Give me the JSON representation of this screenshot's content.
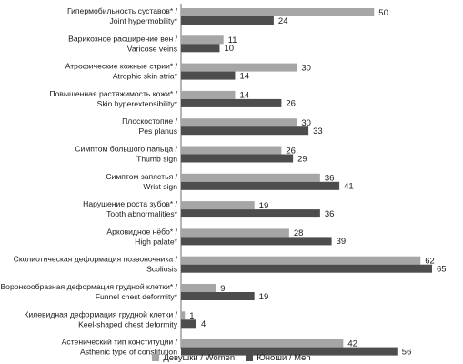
{
  "chart_data": {
    "type": "bar",
    "orientation": "horizontal",
    "categories": [
      {
        "ru": "Гипермобильность суставов* /",
        "en": "Joint hypermobility*"
      },
      {
        "ru": "Варикозное расширение вен /",
        "en": "Varicose veins"
      },
      {
        "ru": "Атрофические кожные стрии* /",
        "en": "Atrophic skin stria*"
      },
      {
        "ru": "Повышенная растяжимость кожи* /",
        "en": "Skin hyperextensibility*"
      },
      {
        "ru": "Плоскостопие /",
        "en": "Pes planus"
      },
      {
        "ru": "Симптом большого пальца /",
        "en": "Thumb sign"
      },
      {
        "ru": "Симптом запястья /",
        "en": "Wrist sign"
      },
      {
        "ru": "Нарушение роста зубов* /",
        "en": "Tooth abnormalities*"
      },
      {
        "ru": "Арковидное нёбо* /",
        "en": "High palate*"
      },
      {
        "ru": "Сколиотическая деформация позвоночника /",
        "en": "Scoliosis"
      },
      {
        "ru": "Воронкообразная деформация грудной клетки* /",
        "en": "Funnel chest deformity*"
      },
      {
        "ru": "Килевидная деформация грудной клетки /",
        "en": "Keel-shaped chest deformity"
      },
      {
        "ru": "Астенический тип конституции /",
        "en": "Asthenic type of constitution"
      }
    ],
    "series": [
      {
        "name": "Девушки / Women",
        "color": "#a6a6a6",
        "values": [
          50,
          11,
          30,
          14,
          30,
          26,
          36,
          19,
          28,
          62,
          9,
          1,
          42
        ]
      },
      {
        "name": "Юноши / Men",
        "color": "#4d4d4d",
        "values": [
          24,
          10,
          14,
          26,
          33,
          29,
          41,
          36,
          39,
          65,
          19,
          4,
          56
        ]
      }
    ],
    "xlim": [
      0,
      65
    ],
    "grid": false,
    "legend_position": "bottom"
  }
}
